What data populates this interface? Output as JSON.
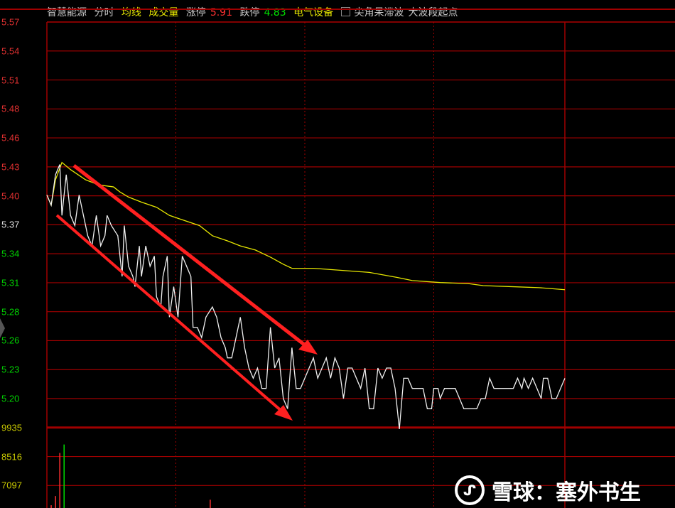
{
  "header": {
    "stock_name": "智慧能源",
    "mode": "分时",
    "avg_line_label": "均线",
    "volume_label": "成交量",
    "limit_up_label": "涨停",
    "limit_up": "5.91",
    "limit_down_label": "跌停",
    "limit_down": "4.83",
    "sector": "电气设备",
    "indicator1": "尖角呆滞波",
    "indicator2": "大波段起点"
  },
  "watermark": "雪球：塞外书生",
  "colors": {
    "up": "#ff3030",
    "down": "#00e000",
    "price_line": "#ffffff",
    "avg_line": "#e6e600",
    "grid": "#a00000",
    "arrow": "#ff2020"
  },
  "chart_data": {
    "type": "line",
    "price_ticks": [
      "5.57",
      "5.54",
      "5.51",
      "5.48",
      "5.46",
      "5.43",
      "5.40",
      "5.37",
      "5.34",
      "5.31",
      "5.28",
      "5.26",
      "5.23",
      "5.20"
    ],
    "prev_close": 5.37,
    "ylim": [
      5.2,
      5.57
    ],
    "xlim": [
      0,
      241
    ],
    "volume_ticks": [
      "9935",
      "8516",
      "7097"
    ],
    "price": [
      [
        0,
        5.4
      ],
      [
        2,
        5.39
      ],
      [
        4,
        5.42
      ],
      [
        6,
        5.43
      ],
      [
        7,
        5.38
      ],
      [
        9,
        5.42
      ],
      [
        11,
        5.38
      ],
      [
        13,
        5.37
      ],
      [
        15,
        5.4
      ],
      [
        17,
        5.38
      ],
      [
        19,
        5.36
      ],
      [
        21,
        5.35
      ],
      [
        23,
        5.38
      ],
      [
        25,
        5.35
      ],
      [
        27,
        5.36
      ],
      [
        28,
        5.38
      ],
      [
        30,
        5.37
      ],
      [
        33,
        5.36
      ],
      [
        35,
        5.32
      ],
      [
        36,
        5.37
      ],
      [
        38,
        5.33
      ],
      [
        40,
        5.32
      ],
      [
        41,
        5.31
      ],
      [
        43,
        5.35
      ],
      [
        44,
        5.32
      ],
      [
        46,
        5.35
      ],
      [
        48,
        5.33
      ],
      [
        50,
        5.34
      ],
      [
        51,
        5.3
      ],
      [
        53,
        5.29
      ],
      [
        54,
        5.32
      ],
      [
        56,
        5.34
      ],
      [
        57,
        5.28
      ],
      [
        59,
        5.31
      ],
      [
        61,
        5.28
      ],
      [
        63,
        5.34
      ],
      [
        65,
        5.33
      ],
      [
        67,
        5.32
      ],
      [
        68,
        5.27
      ],
      [
        70,
        5.27
      ],
      [
        72,
        5.26
      ],
      [
        74,
        5.28
      ],
      [
        77,
        5.29
      ],
      [
        79,
        5.28
      ],
      [
        81,
        5.26
      ],
      [
        83,
        5.25
      ],
      [
        84,
        5.24
      ],
      [
        86,
        5.24
      ],
      [
        88,
        5.26
      ],
      [
        90,
        5.28
      ],
      [
        92,
        5.25
      ],
      [
        94,
        5.23
      ],
      [
        96,
        5.22
      ],
      [
        98,
        5.23
      ],
      [
        100,
        5.21
      ],
      [
        102,
        5.21
      ],
      [
        104,
        5.27
      ],
      [
        106,
        5.23
      ],
      [
        108,
        5.24
      ],
      [
        110,
        5.2
      ],
      [
        112,
        5.19
      ],
      [
        114,
        5.25
      ],
      [
        116,
        5.21
      ],
      [
        118,
        5.21
      ],
      [
        120,
        5.22
      ],
      [
        122,
        5.23
      ],
      [
        124,
        5.24
      ],
      [
        126,
        5.22
      ],
      [
        128,
        5.23
      ],
      [
        130,
        5.24
      ],
      [
        132,
        5.22
      ],
      [
        134,
        5.24
      ],
      [
        136,
        5.23
      ],
      [
        138,
        5.2
      ],
      [
        140,
        5.23
      ],
      [
        142,
        5.23
      ],
      [
        144,
        5.22
      ],
      [
        146,
        5.21
      ],
      [
        148,
        5.23
      ],
      [
        150,
        5.19
      ],
      [
        152,
        5.19
      ],
      [
        154,
        5.23
      ],
      [
        156,
        5.22
      ],
      [
        158,
        5.23
      ],
      [
        160,
        5.23
      ],
      [
        162,
        5.21
      ],
      [
        164,
        5.17
      ],
      [
        166,
        5.22
      ],
      [
        168,
        5.22
      ],
      [
        170,
        5.21
      ],
      [
        173,
        5.21
      ],
      [
        175,
        5.21
      ],
      [
        177,
        5.19
      ],
      [
        179,
        5.19
      ],
      [
        180,
        5.21
      ],
      [
        182,
        5.21
      ],
      [
        183,
        5.2
      ],
      [
        185,
        5.21
      ],
      [
        188,
        5.21
      ],
      [
        190,
        5.21
      ],
      [
        192,
        5.2
      ],
      [
        194,
        5.19
      ],
      [
        196,
        5.19
      ],
      [
        200,
        5.19
      ],
      [
        202,
        5.2
      ],
      [
        204,
        5.2
      ],
      [
        206,
        5.22
      ],
      [
        208,
        5.21
      ],
      [
        213,
        5.21
      ],
      [
        217,
        5.21
      ],
      [
        219,
        5.22
      ],
      [
        221,
        5.21
      ],
      [
        222,
        5.22
      ],
      [
        224,
        5.21
      ],
      [
        226,
        5.22
      ],
      [
        228,
        5.21
      ],
      [
        230,
        5.2
      ],
      [
        231,
        5.22
      ],
      [
        233,
        5.22
      ],
      [
        235,
        5.2
      ],
      [
        237,
        5.2
      ],
      [
        239,
        5.21
      ],
      [
        241,
        5.22
      ]
    ],
    "avg": [
      [
        0,
        5.4
      ],
      [
        2,
        5.39
      ],
      [
        4,
        5.415
      ],
      [
        7,
        5.432
      ],
      [
        11,
        5.425
      ],
      [
        18,
        5.415
      ],
      [
        24,
        5.41
      ],
      [
        31,
        5.408
      ],
      [
        34,
        5.403
      ],
      [
        38,
        5.398
      ],
      [
        44,
        5.393
      ],
      [
        51,
        5.388
      ],
      [
        57,
        5.38
      ],
      [
        64,
        5.375
      ],
      [
        71,
        5.37
      ],
      [
        77,
        5.36
      ],
      [
        84,
        5.355
      ],
      [
        90,
        5.35
      ],
      [
        97,
        5.346
      ],
      [
        104,
        5.339
      ],
      [
        110,
        5.332
      ],
      [
        114,
        5.328
      ],
      [
        124,
        5.328
      ],
      [
        137,
        5.326
      ],
      [
        150,
        5.324
      ],
      [
        163,
        5.319
      ],
      [
        170,
        5.316
      ],
      [
        183,
        5.314
      ],
      [
        196,
        5.313
      ],
      [
        203,
        5.311
      ],
      [
        216,
        5.31
      ],
      [
        229,
        5.309
      ],
      [
        241,
        5.307
      ]
    ],
    "volume": [
      [
        2,
        6130,
        "up"
      ],
      [
        4,
        6580,
        "up"
      ],
      [
        6,
        8690,
        "up"
      ],
      [
        8,
        9105,
        "down"
      ],
      [
        76,
        6400,
        "up"
      ]
    ]
  }
}
